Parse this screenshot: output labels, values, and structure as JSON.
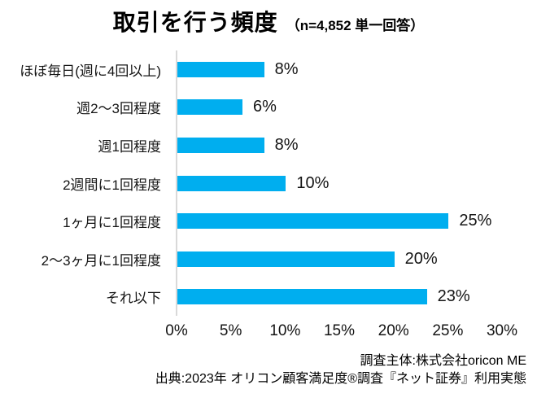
{
  "header": {
    "title": "取引を行う頻度",
    "subtitle": "（n=4,852 単一回答）"
  },
  "chart_data": {
    "type": "bar",
    "orientation": "horizontal",
    "title": "取引を行う頻度",
    "subtitle": "（n=4,852 単一回答）",
    "categories": [
      "ほぼ毎日(週に4回以上)",
      "週2〜3回程度",
      "週1回程度",
      "2週間に1回程度",
      "1ヶ月に1回程度",
      "2〜3ヶ月に1回程度",
      "それ以下"
    ],
    "values": [
      8,
      6,
      8,
      10,
      25,
      20,
      23
    ],
    "value_labels": [
      "8%",
      "6%",
      "8%",
      "10%",
      "25%",
      "20%",
      "23%"
    ],
    "xlabel": "",
    "ylabel": "",
    "xlim": [
      0,
      30
    ],
    "x_ticks": [
      "0%",
      "5%",
      "10%",
      "15%",
      "20%",
      "25%",
      "30%"
    ],
    "x_tick_values": [
      0,
      5,
      10,
      15,
      20,
      25,
      30
    ],
    "bar_color": "#00aeef",
    "axis_line_color": "#d9d9d9",
    "grid": false,
    "legend_position": "none"
  },
  "footer": {
    "line1": "調査主体:株式会社oricon ME",
    "line2": "出典:2023年 オリコン顧客満足度®調査『ネット証券』利用実態"
  }
}
